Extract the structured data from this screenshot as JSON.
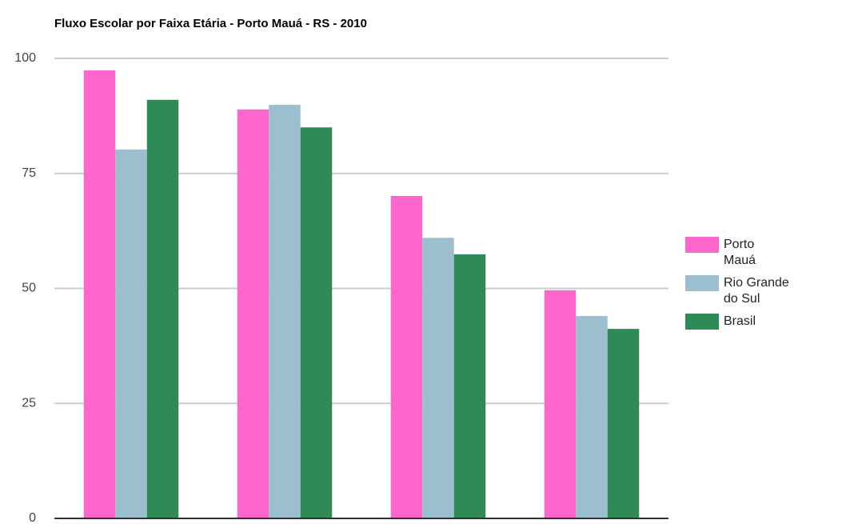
{
  "chart_data": {
    "type": "bar",
    "title": "Fluxo Escolar por Faixa Etária - Porto Mauá - RS - 2010",
    "categories": [
      null,
      null,
      null,
      null
    ],
    "series": [
      {
        "name": "Porto Mauá",
        "color": "#ff66cc",
        "values": [
          97.4,
          88.9,
          70.1,
          49.6
        ]
      },
      {
        "name": "Rio Grande do Sul",
        "color": "#9bbfcf",
        "values": [
          80.2,
          89.9,
          61.0,
          44.0
        ]
      },
      {
        "name": "Brasil",
        "color": "#2e8b57",
        "values": [
          91.0,
          85.0,
          57.4,
          41.2
        ]
      }
    ],
    "ylim": [
      0,
      100
    ],
    "yticks": [
      0,
      25,
      50,
      75,
      100
    ],
    "grid": true,
    "legend": "right"
  }
}
